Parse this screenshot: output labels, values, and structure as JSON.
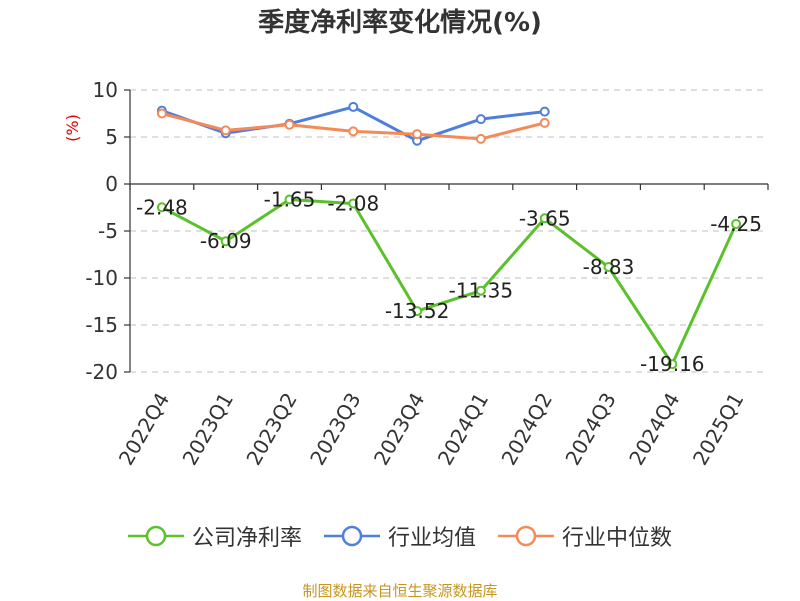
{
  "title": "季度净利率变化情况(%)",
  "source_note": "制图数据来自恒生聚源数据库",
  "colors": {
    "company": "#5bc12b",
    "industry_avg": "#4e7fdc",
    "industry_median": "#f48a58",
    "unit": "#e00000"
  },
  "chart_data": {
    "type": "line",
    "title": "季度净利率变化情况(%)",
    "ylabel": "(%)",
    "xlabel": "",
    "ylim": [
      -20,
      10
    ],
    "yticks": [
      10,
      5,
      0,
      -5,
      -10,
      -15,
      -20
    ],
    "grid": true,
    "legend_position": "bottom",
    "categories": [
      "2022Q4",
      "2023Q1",
      "2023Q2",
      "2023Q3",
      "2023Q4",
      "2024Q1",
      "2024Q2",
      "2024Q3",
      "2024Q4",
      "2025Q1"
    ],
    "series": [
      {
        "name": "公司净利率",
        "color": "#5bc12b",
        "values": [
          -2.48,
          -6.09,
          -1.65,
          -2.08,
          -13.52,
          -11.35,
          -3.65,
          -8.83,
          -19.16,
          -4.25
        ],
        "labels": [
          "-2.48",
          "-6.09",
          "-1.65",
          "-2.08",
          "-13.52",
          "-11.35",
          "-3.65",
          "-8.83",
          "-19.16",
          "-4.25"
        ]
      },
      {
        "name": "行业均值",
        "color": "#4e7fdc",
        "values": [
          7.8,
          5.4,
          6.4,
          8.2,
          4.6,
          6.9,
          7.7,
          null,
          null,
          null
        ]
      },
      {
        "name": "行业中位数",
        "color": "#f48a58",
        "values": [
          7.5,
          5.7,
          6.3,
          5.6,
          5.3,
          4.8,
          6.5,
          null,
          null,
          null
        ]
      }
    ]
  }
}
